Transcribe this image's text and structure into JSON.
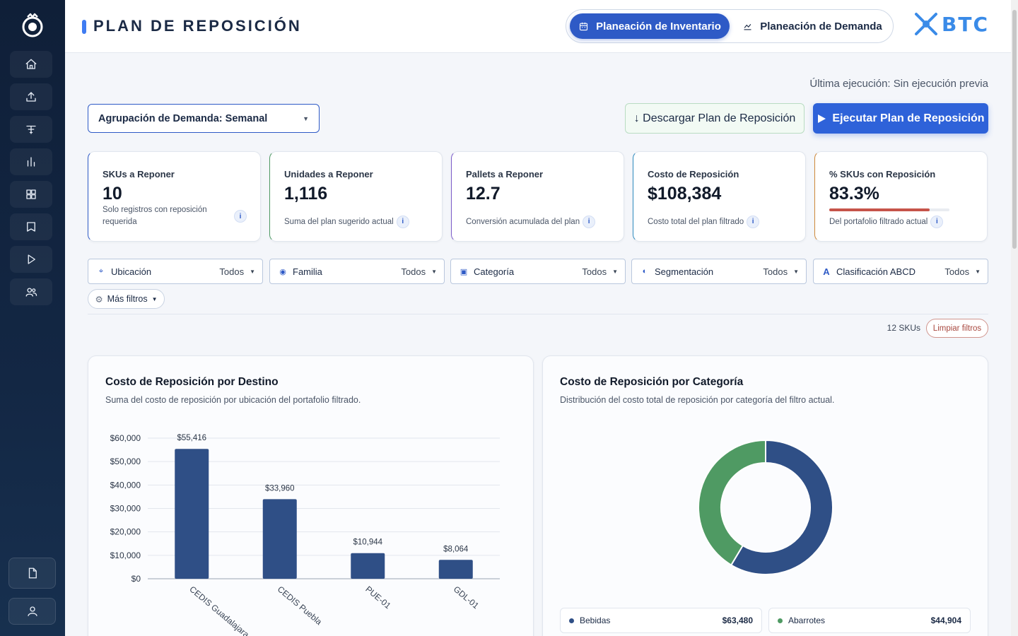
{
  "header": {
    "title": "PLAN DE REPOSICIÓN",
    "modes": [
      {
        "label": "Planeación de Inventario",
        "active": true
      },
      {
        "label": "Planeación de Demanda",
        "active": false
      }
    ],
    "brand": "BTC"
  },
  "sidebar": {
    "icons": [
      "home-icon",
      "upload-icon",
      "filter-icon",
      "bar-chart-icon",
      "grid-icon",
      "book-icon",
      "play-icon",
      "users-icon"
    ],
    "bottom_icons": [
      "document-icon",
      "user-icon"
    ]
  },
  "toolbar": {
    "last_run": "Última ejecución: Sin ejecución previa",
    "grouping": "Agrupación de Demanda: Semanal",
    "download_label": "↓ Descargar Plan de Reposición",
    "run_label": "Ejecutar Plan de Reposición"
  },
  "kpis": [
    {
      "label": "SKUs a Reponer",
      "value": "10",
      "note": "Solo registros con reposición requerida",
      "accent": "#2e5ac6"
    },
    {
      "label": "Unidades a Reponer",
      "value": "1,116",
      "note": "Suma del plan sugerido actual",
      "accent": "#4f9a63"
    },
    {
      "label": "Pallets a Reponer",
      "value": "12.7",
      "note": "Conversión acumulada del plan",
      "accent": "#7b5bc9"
    },
    {
      "label": "Costo de Reposición",
      "value": "$108,384",
      "note": "Costo total del plan filtrado",
      "accent": "#2e8bbf"
    },
    {
      "label": "% SKUs con Reposición",
      "value": "83.3%",
      "note": "Del portafolio filtrado actual",
      "accent": "#d08a3a",
      "progress": 0.833
    }
  ],
  "info_glyph": "i",
  "filters": [
    {
      "label": "Ubicación",
      "value": "Todos",
      "icon": "location-icon",
      "glyph": "⌖"
    },
    {
      "label": "Familia",
      "value": "Todos",
      "icon": "family-icon",
      "glyph": "◉"
    },
    {
      "label": "Categoría",
      "value": "Todos",
      "icon": "category-icon",
      "glyph": "▣"
    },
    {
      "label": "Segmentación",
      "value": "Todos",
      "icon": "segment-icon",
      "glyph": "◐"
    },
    {
      "label": "Clasificación ABCD",
      "value": "Todos",
      "icon": "abcd-icon",
      "glyph": "A"
    }
  ],
  "more_filters": {
    "label": "Más filtros",
    "glyph": "⚙"
  },
  "results": {
    "sku_count": "12 SKUs",
    "clear_label": "Limpiar filtros"
  },
  "chart_data": [
    {
      "type": "bar",
      "title": "Costo de Reposición por Destino",
      "subtitle": "Suma del costo de reposición por ubicación del portafolio filtrado.",
      "categories": [
        "CEDIS Guadalajara",
        "CEDIS Puebla",
        "PUE-01",
        "GDL-01"
      ],
      "values": [
        55416,
        33960,
        10944,
        8064
      ],
      "value_labels": [
        "$55,416",
        "$33,960",
        "$10,944",
        "$8,064"
      ],
      "y_ticks": [
        "$0",
        "$10,000",
        "$20,000",
        "$30,000",
        "$40,000",
        "$50,000",
        "$60,000"
      ],
      "ylim": [
        0,
        60000
      ],
      "color": "#2f4f86",
      "grid": true
    },
    {
      "type": "pie",
      "title": "Costo de Reposición por Categoría",
      "subtitle": "Distribución del costo total de reposición por categoría del filtro actual.",
      "labels": [
        "Bebidas",
        "Abarrotes"
      ],
      "values": [
        63480,
        44904
      ],
      "value_labels": [
        "$63,480",
        "$44,904"
      ],
      "colors": [
        "#2f4f86",
        "#4f9a63"
      ],
      "legend": "bottom"
    }
  ]
}
